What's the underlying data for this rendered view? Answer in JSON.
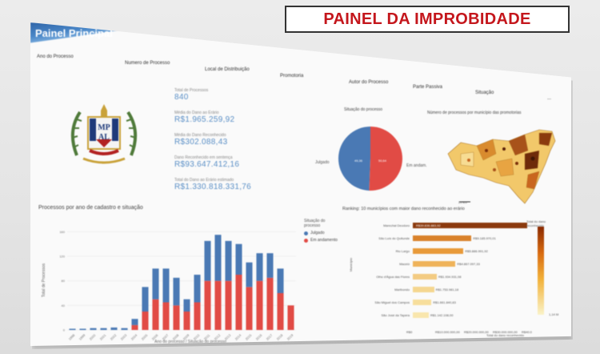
{
  "headline": "PAINEL DA IMPROBIDADE",
  "window": {
    "title": "Painel Principal"
  },
  "filters": [
    "Ano do Processo",
    "Numero de Processo",
    "Local de Distribuição",
    "Promotoria",
    "Autor do Processo",
    "Parte Passiva",
    "Situação",
    "..."
  ],
  "logo": {
    "text_top": "MP",
    "text_bottom": "AL"
  },
  "kpis": [
    {
      "label": "Total de Processos",
      "value": "840"
    },
    {
      "label": "Média do Dano ao Erário",
      "value": "R$1.965.259,92"
    },
    {
      "label": "Média do Dano Reconhecido",
      "value": "R$302.088,43"
    },
    {
      "label": "Dano Reconhecido em sentença",
      "value": "R$93.647.412,16"
    },
    {
      "label": "Total do Dano ao Erário estimado",
      "value": "R$1.330.818.331,76"
    }
  ],
  "pie": {
    "title": "Situação do processo",
    "labels": [
      "Julgado",
      "Em andam."
    ],
    "values": [
      49.4,
      50.6
    ],
    "value_labels": [
      "49,36",
      "50,64"
    ],
    "colors": [
      "#4a79b4",
      "#e14b45"
    ]
  },
  "map": {
    "title": "Número de processos por município das promotorias",
    "scale": "20 km"
  },
  "bar_chart": {
    "title": "Processos por ano de cadastro e situação",
    "xlabel": "Ano do processo / Situação do processo",
    "ylabel": "Total de Processos",
    "legend_title": "Situação do processo",
    "legend": [
      "Julgado",
      "Em andamento"
    ],
    "colors": {
      "julgado": "#4a79b4",
      "andamento": "#e14b45"
    }
  },
  "ranking": {
    "title": "Ranking: 10 municípios com maior dano reconhecido ao erário",
    "ylabel": "Município",
    "xlabel": "Total do dano reconhecido",
    "legend_title": "Total do dano reconhecido",
    "legend_min": "1,14 M",
    "x_ticks": [
      "R$0",
      "R$10.000.000,00",
      "R$20.000.000,00",
      "R$30.000.000,00",
      "R$40.0"
    ],
    "rows": [
      {
        "name": "Marechal Deodoro",
        "value": 43,
        "label": "R$39.836.883,92",
        "color": "#8b3a0e"
      },
      {
        "name": "São Luís do Quitunde",
        "value": 22,
        "label": "R$9.185.970,01",
        "color": "#d9822b"
      },
      {
        "name": "Rio Largo",
        "value": 19,
        "label": "R$5.886.991,92",
        "color": "#e89a3a"
      },
      {
        "name": "Maceió",
        "value": 16,
        "label": "R$4.867.097,33",
        "color": "#efb35a"
      },
      {
        "name": "Olho d'Água das Flores",
        "value": 9,
        "label": "R$1.934.931,08",
        "color": "#f3cb82"
      },
      {
        "name": "Maribondo",
        "value": 8,
        "label": "R$1.753.981,18",
        "color": "#f5d68f"
      },
      {
        "name": "São Miguel dos Campos",
        "value": 7,
        "label": "R$1.661.840,83",
        "color": "#f7de9c"
      },
      {
        "name": "São José da Tapera",
        "value": 6,
        "label": "R$1.142.108,00",
        "color": "#f9e6ad"
      }
    ]
  },
  "chart_data": {
    "type": "bar",
    "title": "Processos por ano de cadastro e situação",
    "xlabel": "Ano do processo / Situação do processo",
    "ylabel": "Total de Processos",
    "categories": [
      "1998",
      "1999",
      "2000",
      "2001",
      "2002",
      "2003",
      "2004",
      "2005",
      "2006",
      "2007",
      "2008",
      "2009",
      "2010",
      "2011",
      "2012",
      "2013",
      "2014",
      "2015",
      "2016",
      "2017",
      "2018",
      "2019"
    ],
    "series": [
      {
        "name": "Julgado",
        "values": [
          2,
          2,
          3,
          3,
          4,
          3,
          10,
          40,
          50,
          55,
          45,
          20,
          45,
          65,
          75,
          65,
          50,
          40,
          45,
          40,
          40,
          0
        ]
      },
      {
        "name": "Em andamento",
        "values": [
          0,
          0,
          0,
          0,
          0,
          0,
          8,
          30,
          50,
          45,
          40,
          30,
          45,
          80,
          80,
          80,
          90,
          70,
          80,
          85,
          60,
          40
        ]
      }
    ],
    "ylim": [
      0,
      180
    ],
    "yticks": [
      0,
      40,
      80,
      120,
      160
    ]
  }
}
